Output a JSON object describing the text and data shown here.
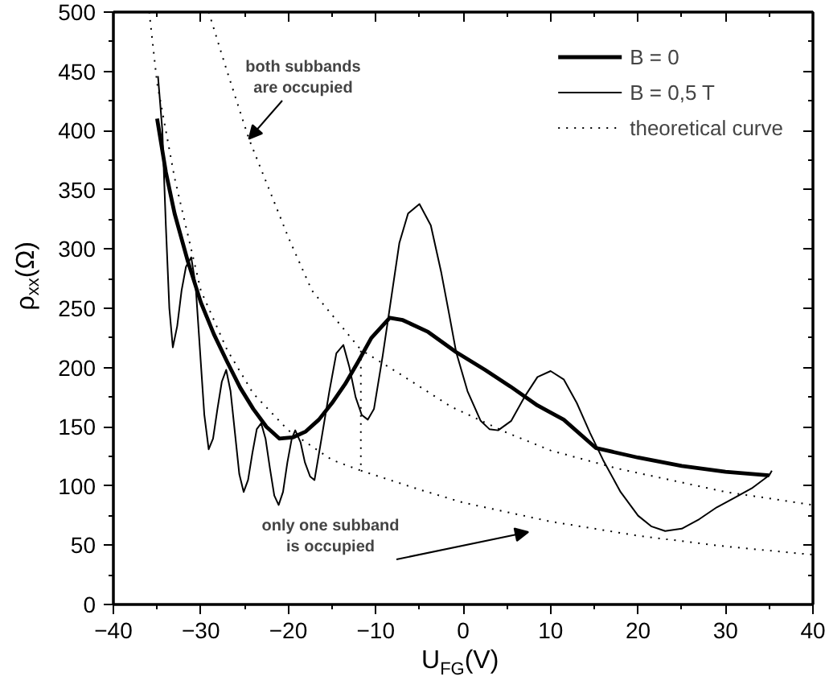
{
  "chart_data": {
    "type": "line",
    "xlabel": "U$_{FG}$(V)",
    "ylabel": "ρ$_{xx}$(Ω)",
    "xlim": [
      -40,
      40
    ],
    "ylim": [
      0,
      500
    ],
    "xticks": [
      -40,
      -30,
      -20,
      -10,
      0,
      10,
      20,
      30,
      40
    ],
    "yticks": [
      0,
      50,
      100,
      150,
      200,
      250,
      300,
      350,
      400,
      450,
      500
    ],
    "grid": false,
    "legend": "top right",
    "series": [
      {
        "name": "B = 0",
        "color": "#000000",
        "line_style": "solid",
        "x": [
          -35,
          -34,
          -33,
          -31.5,
          -30,
          -28.5,
          -27,
          -25.5,
          -24,
          -22.5,
          -21,
          -19.5,
          -18,
          -16.5,
          -15,
          -13.5,
          -12,
          -10.5,
          -8.4,
          -6.9,
          -4,
          -0.8,
          2.5,
          5.4,
          8.5,
          11.5,
          15.2,
          20,
          25,
          30,
          35
        ],
        "values": [
          410,
          365,
          330,
          290,
          255,
          228,
          205,
          183,
          165,
          150,
          140,
          141,
          146,
          156,
          170,
          186,
          205,
          225,
          242,
          240,
          230,
          213,
          198,
          184,
          168,
          156,
          132,
          124,
          117,
          112,
          109
        ]
      },
      {
        "name": "B = 0,5 T",
        "color": "#000000",
        "line_style": "solid",
        "x": [
          -34.9,
          -34.4,
          -34,
          -33.6,
          -33.2,
          -32.7,
          -32.2,
          -31.7,
          -31.1,
          -30.6,
          -30.1,
          -29.6,
          -29.1,
          -28.6,
          -28.1,
          -27.6,
          -27.1,
          -26.6,
          -26.1,
          -25.6,
          -25.1,
          -24.6,
          -24.1,
          -23.6,
          -23.1,
          -22.6,
          -22.1,
          -21.6,
          -21.1,
          -20.6,
          -20.1,
          -19.6,
          -19.2,
          -18.6,
          -18.1,
          -17.5,
          -17,
          -16.2,
          -15.3,
          -14.5,
          -13.7,
          -13,
          -12.3,
          -11.6,
          -10.9,
          -10.2,
          -9.2,
          -8.2,
          -7.3,
          -6.3,
          -5,
          -3.7,
          -2.5,
          -1.6,
          -0.8,
          0.5,
          2,
          3,
          4,
          5.5,
          7,
          8.5,
          10,
          11.5,
          13,
          14.5,
          16,
          18,
          20,
          21.5,
          23.1,
          25,
          27,
          29,
          31,
          33,
          35,
          35.3
        ],
        "values": [
          446,
          400,
          320,
          250,
          217,
          235,
          265,
          285,
          293,
          270,
          215,
          160,
          131,
          140,
          165,
          188,
          198,
          180,
          145,
          110,
          95,
          105,
          128,
          148,
          153,
          140,
          115,
          92,
          84,
          95,
          120,
          140,
          147,
          137,
          120,
          108,
          105,
          140,
          180,
          212,
          219,
          200,
          175,
          160,
          156,
          165,
          210,
          260,
          305,
          330,
          338,
          320,
          280,
          245,
          213,
          180,
          155,
          148,
          147,
          155,
          175,
          192,
          197,
          190,
          170,
          145,
          122,
          95,
          75,
          66,
          62,
          64,
          72,
          82,
          90,
          98,
          109,
          113
        ]
      },
      {
        "name": "theoretical curve",
        "color": "#000000",
        "line_style": "dotted",
        "x": [
          -35.9,
          -35,
          -33,
          -30,
          -27,
          -24,
          -20,
          -15,
          -11.7,
          -11.7,
          -6.9,
          -1.4,
          5,
          10,
          17.5,
          25,
          30,
          40
        ],
        "values": [
          500,
          440,
          360,
          265,
          215,
          178,
          147,
          122,
          113,
          215,
          193,
          167,
          145,
          130,
          115,
          103,
          95,
          84
        ]
      },
      {
        "color": "#000000",
        "line_style": "dotted",
        "x": [
          -29.1,
          -27,
          -24.5,
          -20,
          -17.3,
          -11.7
        ],
        "values": [
          500,
          450,
          393,
          310,
          265,
          215
        ]
      },
      {
        "color": "#000000",
        "line_style": "dotted",
        "x": [
          -11.7,
          -5,
          0,
          10,
          20,
          30,
          40
        ],
        "values": [
          113,
          97,
          86,
          70,
          58,
          49,
          42
        ]
      }
    ],
    "annotations": [
      {
        "text": "both subbands\nare occupied",
        "x": -24.5,
        "y": 393
      },
      "only one subband\nis occupied"
    ]
  }
}
